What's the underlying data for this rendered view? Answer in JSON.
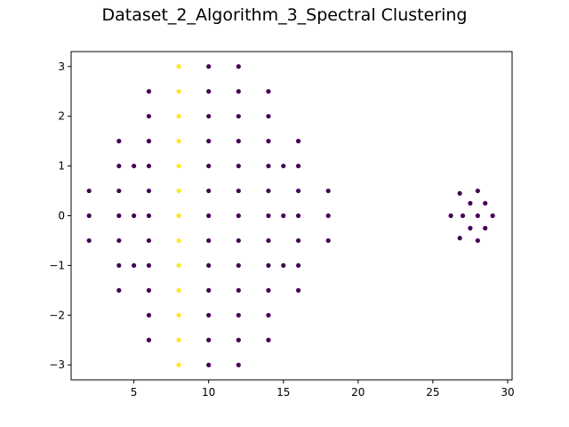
{
  "chart_data": {
    "type": "scatter",
    "title": "Dataset_2_Algorithm_3_Spectral Clustering",
    "xlabel": "",
    "ylabel": "",
    "xlim": [
      0.8,
      30.3
    ],
    "ylim": [
      -3.3,
      3.3
    ],
    "x_ticks": [
      5,
      10,
      15,
      20,
      25,
      30
    ],
    "x_tick_labels": [
      "5",
      "10",
      "15",
      "20",
      "25",
      "30"
    ],
    "y_ticks": [
      -3,
      -2,
      -1,
      0,
      1,
      2,
      3
    ],
    "y_tick_labels": [
      "−3",
      "−2",
      "−1",
      "0",
      "1",
      "2",
      "3"
    ],
    "grid": false,
    "colors": {
      "cluster_0": "#440154",
      "cluster_1": "#fde725"
    },
    "series": [
      {
        "cluster": 0,
        "points": [
          [
            2,
            0.5
          ],
          [
            2,
            0
          ],
          [
            2,
            -0.5
          ],
          [
            4,
            1.5
          ],
          [
            4,
            1
          ],
          [
            4,
            0.5
          ],
          [
            4,
            0
          ],
          [
            4,
            -0.5
          ],
          [
            4,
            -1
          ],
          [
            4,
            -1.5
          ],
          [
            5,
            1
          ],
          [
            5,
            0
          ],
          [
            5,
            -1
          ],
          [
            6,
            2.5
          ],
          [
            6,
            2
          ],
          [
            6,
            1.5
          ],
          [
            6,
            1
          ],
          [
            6,
            0.5
          ],
          [
            6,
            0
          ],
          [
            6,
            -0.5
          ],
          [
            6,
            -1
          ],
          [
            6,
            -1.5
          ],
          [
            6,
            -2
          ],
          [
            6,
            -2.5
          ],
          [
            10,
            3
          ],
          [
            10,
            2.5
          ],
          [
            10,
            2
          ],
          [
            10,
            1.5
          ],
          [
            10,
            1
          ],
          [
            10,
            0.5
          ],
          [
            10,
            0
          ],
          [
            10,
            -0.5
          ],
          [
            10,
            -1
          ],
          [
            10,
            -1.5
          ],
          [
            10,
            -2
          ],
          [
            10,
            -2.5
          ],
          [
            10,
            -3
          ],
          [
            12,
            3
          ],
          [
            12,
            2.5
          ],
          [
            12,
            2
          ],
          [
            12,
            1.5
          ],
          [
            12,
            1
          ],
          [
            12,
            0.5
          ],
          [
            12,
            0
          ],
          [
            12,
            -0.5
          ],
          [
            12,
            -1
          ],
          [
            12,
            -1.5
          ],
          [
            12,
            -2
          ],
          [
            12,
            -2.5
          ],
          [
            12,
            -3
          ],
          [
            14,
            2.5
          ],
          [
            14,
            2
          ],
          [
            14,
            1.5
          ],
          [
            14,
            1
          ],
          [
            14,
            0.5
          ],
          [
            14,
            0
          ],
          [
            14,
            -0.5
          ],
          [
            14,
            -1
          ],
          [
            14,
            -1.5
          ],
          [
            14,
            -2
          ],
          [
            14,
            -2.5
          ],
          [
            15,
            1
          ],
          [
            15,
            0
          ],
          [
            15,
            -1
          ],
          [
            16,
            1.5
          ],
          [
            16,
            1
          ],
          [
            16,
            0.5
          ],
          [
            16,
            0
          ],
          [
            16,
            -0.5
          ],
          [
            16,
            -1
          ],
          [
            16,
            -1.5
          ],
          [
            18,
            0.5
          ],
          [
            18,
            0
          ],
          [
            18,
            -0.5
          ],
          [
            26.2,
            0
          ],
          [
            26.8,
            0.45
          ],
          [
            27,
            0
          ],
          [
            26.8,
            -0.45
          ],
          [
            27.5,
            0.25
          ],
          [
            27.5,
            -0.25
          ],
          [
            28,
            0.5
          ],
          [
            28,
            0
          ],
          [
            28,
            -0.5
          ],
          [
            28.5,
            0.25
          ],
          [
            28.5,
            -0.25
          ],
          [
            29,
            0
          ]
        ]
      },
      {
        "cluster": 1,
        "points": [
          [
            8,
            3
          ],
          [
            8,
            2.5
          ],
          [
            8,
            2
          ],
          [
            8,
            1.5
          ],
          [
            8,
            1
          ],
          [
            8,
            0.5
          ],
          [
            8,
            0
          ],
          [
            8,
            -0.5
          ],
          [
            8,
            -1
          ],
          [
            8,
            -1.5
          ],
          [
            8,
            -2
          ],
          [
            8,
            -2.5
          ],
          [
            8,
            -3
          ]
        ]
      }
    ]
  }
}
